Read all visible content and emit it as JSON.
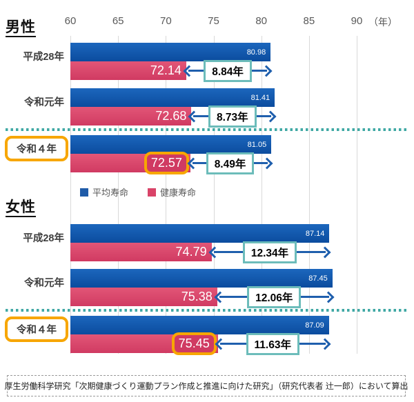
{
  "chart_data": {
    "type": "bar",
    "orientation": "horizontal",
    "x_axis": {
      "ticks": [
        60,
        65,
        70,
        75,
        80,
        85,
        90
      ],
      "unit": "（年）",
      "min": 60,
      "max": 90,
      "grid": true
    },
    "legend": [
      {
        "label": "平均寿命",
        "color": "#1f5ba8"
      },
      {
        "label": "健康寿命",
        "color": "#d94368"
      }
    ],
    "legend_position": "middle-left",
    "sections": [
      {
        "id": "male",
        "title": "男性",
        "rows": [
          {
            "label": "平成28年",
            "life": 80.98,
            "health": 72.14,
            "gap": 8.84,
            "gap_label": "8.84年",
            "highlight": false
          },
          {
            "label": "令和元年",
            "life": 81.41,
            "health": 72.68,
            "gap": 8.73,
            "gap_label": "8.73年",
            "highlight": false
          },
          {
            "label": "令和４年",
            "life": 81.05,
            "health": 72.57,
            "gap": 8.49,
            "gap_label": "8.49年",
            "highlight": true
          }
        ]
      },
      {
        "id": "female",
        "title": "女性",
        "rows": [
          {
            "label": "平成28年",
            "life": 87.14,
            "health": 74.79,
            "gap": 12.34,
            "gap_label": "12.34年",
            "highlight": false
          },
          {
            "label": "令和元年",
            "life": 87.45,
            "health": 75.38,
            "gap": 12.06,
            "gap_label": "12.06年",
            "highlight": false
          },
          {
            "label": "令和４年",
            "life": 87.09,
            "health": 75.45,
            "gap": 11.63,
            "gap_label": "11.63年",
            "highlight": true
          }
        ]
      }
    ]
  },
  "footer": {
    "text": "厚生労働科学研究「次期健康づくり運動プラン作成と推進に向けた研究」（研究代表者 辻一郎）において算出"
  },
  "colors": {
    "life_bar_top": "#1c67bd",
    "life_bar_bottom": "#0b4c9e",
    "health_bar_top": "#e25677",
    "health_bar_bottom": "#d03a62",
    "arrow": "#1f5fad",
    "gap_box_border": "#6cbcba",
    "separator_dots": "#3fa8a4",
    "highlight_border": "#f7a600",
    "grid_line": "#d9d9d9",
    "axis_text": "#595959",
    "footer_border": "#999999"
  }
}
